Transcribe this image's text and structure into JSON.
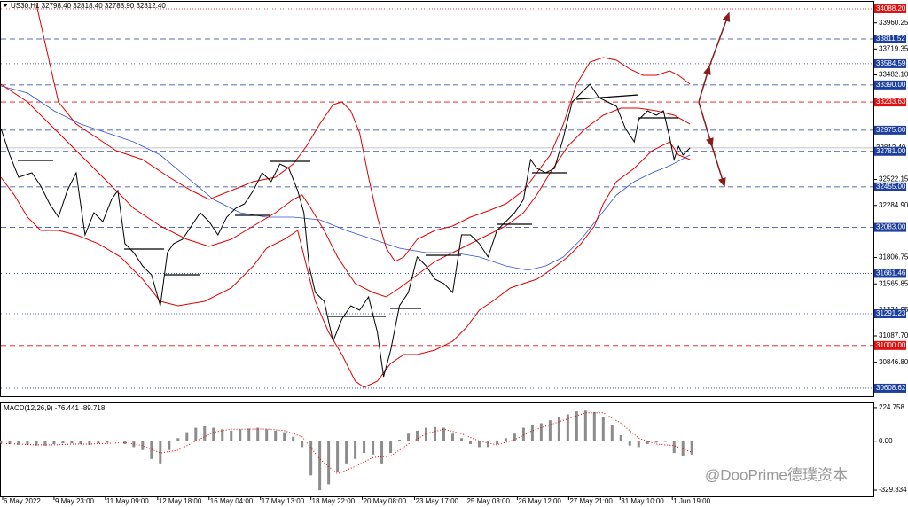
{
  "symbol_info": "US30,H1  32798.40 32818.40 32788.90 32812.40",
  "watermark": "@DooPrime德璞资本",
  "chart_data": [
    {
      "type": "line",
      "xlim": [
        0,
        985
      ],
      "ylim": [
        30535,
        34153
      ],
      "xticks": [
        {
          "value": 2,
          "label": "6 May 2022"
        },
        {
          "value": 60,
          "label": "9 May 23:00"
        },
        {
          "value": 118,
          "label": "11 May 09:00"
        },
        {
          "value": 177,
          "label": "12 May 18:00"
        },
        {
          "value": 235,
          "label": "16 May 04:00"
        },
        {
          "value": 293,
          "label": "17 May 13:00"
        },
        {
          "value": 350,
          "label": "18 May 22:00"
        },
        {
          "value": 408,
          "label": "20 May 08:00"
        },
        {
          "value": 467,
          "label": "23 May 17:00"
        },
        {
          "value": 525,
          "label": "25 May 03:00"
        },
        {
          "value": 583,
          "label": "26 May 12:00"
        },
        {
          "value": 641,
          "label": "27 May 21:00"
        },
        {
          "value": 699,
          "label": "31 May 10:00"
        },
        {
          "value": 758,
          "label": "1 Jun 19:00"
        }
      ],
      "yticks": [
        {
          "value": 33960.25,
          "label": "33960.25"
        },
        {
          "value": 33719.35,
          "label": "33719.35"
        },
        {
          "value": 33482.1,
          "label": "33482.10"
        },
        {
          "value": 32522.15,
          "label": "32522.15"
        },
        {
          "value": 32284.9,
          "label": "32284.90"
        },
        {
          "value": 31806.75,
          "label": "31806.75"
        },
        {
          "value": 31565.85,
          "label": "31565.85"
        },
        {
          "value": 31324.95,
          "label": "31324.95"
        },
        {
          "value": 31087.7,
          "label": "31087.70"
        },
        {
          "value": 30846.8,
          "label": "30846.80"
        }
      ],
      "levels": [
        {
          "value": 34088.2,
          "label": "34088.20",
          "color": "#e01010",
          "style": "dot"
        },
        {
          "value": 33811.52,
          "label": "33811.52",
          "color": "#1c3f9e",
          "style": "dash"
        },
        {
          "value": 33584.59,
          "label": "33584.59",
          "color": "#1c3f9e",
          "style": "dot"
        },
        {
          "value": 33390,
          "label": "33390.00",
          "color": "#1c3f9e",
          "style": "dash"
        },
        {
          "value": 33233.63,
          "label": "33233.63",
          "color": "#e01010",
          "style": "dash"
        },
        {
          "value": 32975,
          "label": "32975.00",
          "color": "#1c3f9e",
          "style": "dash"
        },
        {
          "value": 32812.4,
          "label": "32812.40",
          "color": "#b0b0b0",
          "style": "solid"
        },
        {
          "value": 32781,
          "label": "32781.00",
          "color": "#1c3f9e",
          "style": "dash"
        },
        {
          "value": 32455,
          "label": "32455.00",
          "color": "#1c3f9e",
          "style": "dash"
        },
        {
          "value": 32083,
          "label": "32083.00",
          "color": "#1c3f9e",
          "style": "dash"
        },
        {
          "value": 31661.46,
          "label": "31661.46",
          "color": "#1c3f9e",
          "style": "dot"
        },
        {
          "value": 31291.23,
          "label": "31291.23",
          "color": "#1c3f9e",
          "style": "dot"
        },
        {
          "value": 31000,
          "label": "31000.00",
          "color": "#e01010",
          "style": "dash"
        },
        {
          "value": 30608.62,
          "label": "30608.62",
          "color": "#1c3f9e",
          "style": "dot"
        }
      ],
      "series": [
        {
          "color": "#3050d0",
          "width": 0.8,
          "x": [
            0,
            30,
            60,
            90,
            120,
            150,
            180,
            210,
            240,
            270,
            300,
            330,
            360,
            390,
            420,
            450,
            480,
            510,
            540,
            570,
            595,
            615,
            635,
            655,
            675,
            695,
            715,
            735,
            755,
            778
          ],
          "values": [
            33381,
            33316,
            33153,
            33031,
            32950,
            32868,
            32747,
            32543,
            32340,
            32218,
            32177,
            32177,
            32153,
            32055,
            31974,
            31893,
            31852,
            31852,
            31812,
            31730,
            31690,
            31730,
            31812,
            31974,
            32177,
            32381,
            32503,
            32584,
            32649,
            32747
          ]
        },
        {
          "color": "#e00000",
          "width": 1,
          "x": [
            40,
            65,
            85,
            100,
            130,
            160,
            190,
            215,
            235,
            260,
            285,
            310,
            330,
            345,
            360,
            375,
            385,
            395,
            405,
            415,
            425,
            435,
            445,
            455,
            470,
            490,
            510,
            530,
            550,
            570,
            590,
            605,
            620,
            635,
            650,
            665,
            680,
            695,
            710,
            725,
            740,
            755,
            765,
            778
          ],
          "values": [
            34129,
            33234,
            33031,
            32950,
            32787,
            32706,
            32543,
            32421,
            32340,
            32421,
            32503,
            32543,
            32665,
            32828,
            33031,
            33210,
            33234,
            33153,
            32950,
            32543,
            32177,
            31893,
            31771,
            31812,
            31974,
            32055,
            32096,
            32177,
            32234,
            32299,
            32421,
            32584,
            32747,
            33031,
            33397,
            33600,
            33641,
            33616,
            33535,
            33478,
            33478,
            33519,
            33478,
            33397
          ]
        },
        {
          "color": "#e00000",
          "width": 1,
          "x": [
            0,
            30,
            60,
            90,
            120,
            150,
            180,
            210,
            235,
            260,
            285,
            310,
            330,
            340,
            350,
            365,
            380,
            400,
            420,
            435,
            450,
            470,
            490,
            510,
            530,
            550,
            570,
            590,
            605,
            620,
            640,
            660,
            680,
            700,
            720,
            740,
            760,
            778
          ],
          "values": [
            33397,
            33234,
            32991,
            32747,
            32503,
            32259,
            32096,
            31974,
            31909,
            31974,
            32096,
            32218,
            32340,
            32381,
            32259,
            32055,
            31812,
            31568,
            31486,
            31446,
            31527,
            31649,
            31771,
            31852,
            31934,
            32015,
            32096,
            32218,
            32381,
            32584,
            32828,
            32991,
            33112,
            33177,
            33177,
            33153,
            33112,
            33031
          ]
        },
        {
          "color": "#e00000",
          "width": 1,
          "x": [
            0,
            15,
            30,
            45,
            65,
            85,
            110,
            135,
            160,
            180,
            200,
            230,
            260,
            285,
            300,
            320,
            335,
            345,
            355,
            370,
            385,
            400,
            410,
            425,
            440,
            455,
            470,
            490,
            510,
            525,
            540,
            555,
            575,
            590,
            605,
            620,
            640,
            655,
            670,
            680,
            695,
            715,
            735,
            755,
            765,
            778
          ],
          "values": [
            32543,
            32381,
            32177,
            32055,
            32055,
            32015,
            31934,
            31812,
            31608,
            31405,
            31364,
            31405,
            31527,
            31730,
            31893,
            31974,
            32055,
            31730,
            31405,
            31121,
            30917,
            30673,
            30616,
            30673,
            30836,
            30917,
            30917,
            30958,
            31039,
            31161,
            31324,
            31405,
            31527,
            31568,
            31608,
            31690,
            31812,
            31934,
            32096,
            32299,
            32503,
            32625,
            32787,
            32868,
            32747,
            32706
          ]
        },
        {
          "color": "#000000",
          "width": 1,
          "x": [
            0,
            10,
            20,
            35,
            45,
            55,
            65,
            75,
            85,
            95,
            105,
            115,
            125,
            132,
            140,
            150,
            160,
            170,
            180,
            188,
            195,
            205,
            215,
            225,
            235,
            245,
            255,
            265,
            275,
            285,
            295,
            305,
            315,
            325,
            335,
            342,
            348,
            355,
            365,
            375,
            385,
            395,
            405,
            415,
            425,
            432,
            440,
            450,
            460,
            470,
            480,
            490,
            500,
            510,
            520,
            530,
            540,
            550,
            560,
            570,
            580,
            590,
            598,
            605,
            615,
            625,
            635,
            645,
            655,
            665,
            675,
            685,
            695,
            705,
            715,
            720,
            730,
            740,
            748,
            755,
            760,
            765,
            770,
            778
          ],
          "values": [
            32991,
            32747,
            32543,
            32584,
            32462,
            32299,
            32177,
            32421,
            32584,
            32015,
            32218,
            32137,
            32340,
            32421,
            31934,
            31852,
            31730,
            31649,
            31364,
            31852,
            31934,
            31974,
            32096,
            32218,
            32137,
            32015,
            32177,
            32259,
            32299,
            32421,
            32584,
            32503,
            32665,
            32625,
            32421,
            32218,
            31730,
            31486,
            31405,
            31039,
            31242,
            31364,
            31324,
            31446,
            31121,
            30714,
            30958,
            31364,
            31486,
            31812,
            31730,
            31608,
            31568,
            31486,
            32015,
            32015,
            31934,
            31812,
            32055,
            32137,
            32218,
            32340,
            32706,
            32625,
            32584,
            32625,
            32909,
            33234,
            33316,
            33397,
            33275,
            33234,
            33194,
            32991,
            32868,
            33072,
            33153,
            33112,
            33153,
            32909,
            32706,
            32828,
            32747,
            32812
          ]
        }
      ]
    },
    {
      "type": "bar",
      "title": "MACD(12,26,9) -76.441 -89.718",
      "xlim": [
        0,
        985
      ],
      "ylim": [
        -371,
        254
      ],
      "yticks": [
        {
          "value": 224.758,
          "label": "224.758"
        },
        {
          "value": 0,
          "label": "0.00"
        },
        {
          "value": -329.334,
          "label": "-329.334"
        }
      ],
      "series": [
        {
          "color": "#8c8c8c",
          "x": [
            0,
            10,
            20,
            30,
            40,
            50,
            60,
            70,
            80,
            90,
            100,
            110,
            120,
            130,
            140,
            150,
            160,
            170,
            180,
            190,
            200,
            210,
            220,
            230,
            240,
            250,
            260,
            270,
            280,
            290,
            300,
            310,
            320,
            330,
            340,
            350,
            360,
            370,
            380,
            390,
            400,
            410,
            420,
            430,
            440,
            450,
            460,
            470,
            480,
            490,
            500,
            510,
            520,
            530,
            540,
            550,
            560,
            570,
            580,
            590,
            600,
            610,
            620,
            630,
            640,
            650,
            660,
            670,
            680,
            690,
            700,
            710,
            720,
            730,
            740,
            750,
            760,
            770,
            780
          ],
          "values": [
            -15,
            -20,
            -25,
            -25,
            -30,
            -30,
            -20,
            -15,
            -15,
            -20,
            -25,
            -15,
            -10,
            5,
            -20,
            -40,
            -60,
            -120,
            -150,
            -60,
            20,
            60,
            90,
            100,
            90,
            80,
            70,
            80,
            85,
            90,
            80,
            70,
            60,
            30,
            -40,
            -230,
            -330,
            -290,
            -210,
            -150,
            -120,
            -80,
            -90,
            -150,
            -80,
            10,
            50,
            70,
            90,
            95,
            90,
            50,
            20,
            -20,
            -40,
            -40,
            -20,
            20,
            50,
            90,
            110,
            120,
            140,
            160,
            180,
            200,
            205,
            195,
            160,
            110,
            40,
            -30,
            -40,
            -20,
            -10,
            -5,
            -80,
            -100,
            -90
          ]
        },
        {
          "color": "#e00000",
          "style": "dot",
          "x": [
            0,
            20,
            40,
            60,
            80,
            100,
            120,
            140,
            160,
            180,
            200,
            220,
            240,
            260,
            280,
            300,
            320,
            340,
            360,
            380,
            400,
            420,
            440,
            460,
            480,
            500,
            520,
            540,
            560,
            580,
            600,
            620,
            640,
            660,
            680,
            700,
            720,
            740,
            760,
            780
          ],
          "values": [
            -15,
            -20,
            -25,
            -25,
            -20,
            -20,
            -15,
            -10,
            -30,
            -80,
            -60,
            0,
            60,
            80,
            80,
            82,
            70,
            30,
            -120,
            -220,
            -170,
            -110,
            -100,
            -20,
            50,
            80,
            50,
            0,
            -25,
            10,
            70,
            110,
            150,
            190,
            190,
            120,
            20,
            -20,
            -30,
            -75
          ]
        }
      ]
    }
  ]
}
